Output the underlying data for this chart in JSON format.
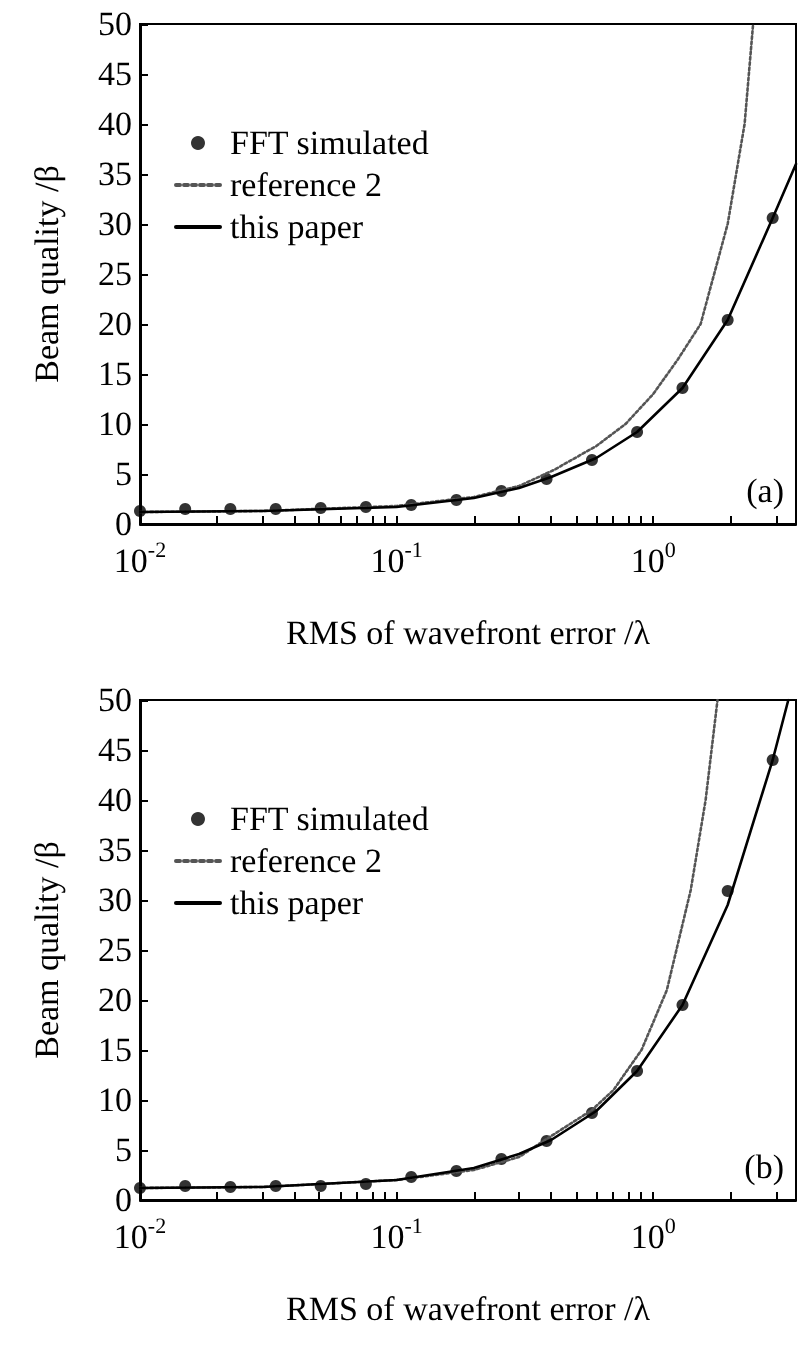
{
  "chart_data": [
    {
      "type": "line",
      "xlabel": "RMS of wavefront error /λ",
      "ylabel": "Beam quality /β",
      "log": "x",
      "xlim": [
        0.01,
        3.6
      ],
      "ylim": [
        0,
        50
      ],
      "xticks": [
        {
          "value": 0.01,
          "label": "10$^{-2}$"
        },
        {
          "value": 0.02,
          "label": null
        },
        {
          "value": 0.03,
          "label": null
        },
        {
          "value": 0.04,
          "label": null
        },
        {
          "value": 0.05,
          "label": null
        },
        {
          "value": 0.06,
          "label": null
        },
        {
          "value": 0.07,
          "label": null
        },
        {
          "value": 0.08,
          "label": null
        },
        {
          "value": 0.09,
          "label": null
        },
        {
          "value": 0.1,
          "label": "10$^{-1}$"
        },
        {
          "value": 0.2,
          "label": null
        },
        {
          "value": 0.3,
          "label": null
        },
        {
          "value": 0.4,
          "label": null
        },
        {
          "value": 0.5,
          "label": null
        },
        {
          "value": 0.6,
          "label": null
        },
        {
          "value": 0.7,
          "label": null
        },
        {
          "value": 0.8,
          "label": null
        },
        {
          "value": 0.9,
          "label": null
        },
        {
          "value": 1,
          "label": "10$^{0}$"
        },
        {
          "value": 2,
          "label": null
        },
        {
          "value": 3,
          "label": null
        }
      ],
      "yticks": [
        0,
        5,
        10,
        15,
        20,
        25,
        30,
        35,
        40,
        45,
        50
      ],
      "grid": false,
      "legend": "top left",
      "annotations": [
        "(a)"
      ],
      "series": [
        {
          "name": "FFT simulated",
          "type": "scatter",
          "marker": "circle",
          "color": "#000000",
          "x": [
            0.01,
            0.015,
            0.0225,
            0.0338,
            0.0506,
            0.0759,
            0.114,
            0.171,
            0.256,
            0.384,
            0.577,
            0.865,
            1.3,
            1.95,
            2.92
          ],
          "values": [
            1.3,
            1.5,
            1.5,
            1.5,
            1.6,
            1.7,
            1.9,
            2.4,
            3.3,
            4.5,
            6.4,
            9.2,
            13.6,
            20.4,
            30.6
          ]
        },
        {
          "name": "reference 2",
          "line_style": "dotted",
          "color": "#555555",
          "x": [
            0.01,
            0.03,
            0.1,
            0.2,
            0.3,
            0.41,
            0.6,
            0.78,
            1,
            1.25,
            1.53,
            1.95,
            2.27,
            2.45
          ],
          "values": [
            1.2,
            1.3,
            1.8,
            2.7,
            3.8,
            5.4,
            7.8,
            10,
            13,
            16.5,
            20,
            30,
            40,
            50
          ]
        },
        {
          "name": "this paper",
          "line_style": "solid",
          "color": "#000000",
          "x": [
            0.01,
            0.03,
            0.1,
            0.2,
            0.3,
            0.4,
            0.6,
            0.865,
            1.3,
            1.95,
            2.92,
            3.6
          ],
          "values": [
            1.2,
            1.3,
            1.7,
            2.6,
            3.6,
            4.7,
            6.6,
            9.2,
            13.6,
            20.4,
            30.6,
            36
          ]
        }
      ]
    },
    {
      "type": "line",
      "xlabel": "RMS of wavefront error /λ",
      "ylabel": "Beam quality /β",
      "log": "x",
      "xlim": [
        0.01,
        3.6
      ],
      "ylim": [
        0,
        50
      ],
      "xticks": [
        {
          "value": 0.01,
          "label": "10$^{-2}$"
        },
        {
          "value": 0.02,
          "label": null
        },
        {
          "value": 0.03,
          "label": null
        },
        {
          "value": 0.04,
          "label": null
        },
        {
          "value": 0.05,
          "label": null
        },
        {
          "value": 0.06,
          "label": null
        },
        {
          "value": 0.07,
          "label": null
        },
        {
          "value": 0.08,
          "label": null
        },
        {
          "value": 0.09,
          "label": null
        },
        {
          "value": 0.1,
          "label": "10$^{-1}$"
        },
        {
          "value": 0.2,
          "label": null
        },
        {
          "value": 0.3,
          "label": null
        },
        {
          "value": 0.4,
          "label": null
        },
        {
          "value": 0.5,
          "label": null
        },
        {
          "value": 0.6,
          "label": null
        },
        {
          "value": 0.7,
          "label": null
        },
        {
          "value": 0.8,
          "label": null
        },
        {
          "value": 0.9,
          "label": null
        },
        {
          "value": 1,
          "label": "10$^{0}$"
        },
        {
          "value": 2,
          "label": null
        },
        {
          "value": 3,
          "label": null
        }
      ],
      "yticks": [
        0,
        5,
        10,
        15,
        20,
        25,
        30,
        35,
        40,
        45,
        50
      ],
      "grid": false,
      "legend": "top left",
      "annotations": [
        "(b)"
      ],
      "series": [
        {
          "name": "FFT simulated",
          "type": "scatter",
          "marker": "circle",
          "color": "#000000",
          "x": [
            0.01,
            0.015,
            0.0225,
            0.0338,
            0.0506,
            0.0759,
            0.114,
            0.171,
            0.256,
            0.384,
            0.577,
            0.865,
            1.3,
            1.95,
            2.92
          ],
          "values": [
            1.2,
            1.4,
            1.3,
            1.4,
            1.4,
            1.6,
            2.3,
            2.9,
            4.1,
            5.9,
            8.7,
            12.9,
            19.5,
            30.9,
            44
          ]
        },
        {
          "name": "reference 2",
          "line_style": "dotted",
          "color": "#555555",
          "x": [
            0.01,
            0.03,
            0.1,
            0.2,
            0.3,
            0.384,
            0.577,
            0.7,
            0.9,
            1.13,
            1.4,
            1.6,
            1.78
          ],
          "values": [
            1.2,
            1.3,
            2,
            3,
            4.3,
            6.1,
            9,
            11,
            15,
            21,
            31,
            40,
            50
          ]
        },
        {
          "name": "this paper",
          "line_style": "solid",
          "color": "#000000",
          "x": [
            0.01,
            0.03,
            0.1,
            0.2,
            0.3,
            0.4,
            0.6,
            0.865,
            1.3,
            1.95,
            2.92,
            3.36
          ],
          "values": [
            1.2,
            1.3,
            2,
            3.2,
            4.6,
            6,
            8.9,
            12.9,
            19.5,
            29.5,
            44,
            50
          ]
        }
      ]
    }
  ]
}
